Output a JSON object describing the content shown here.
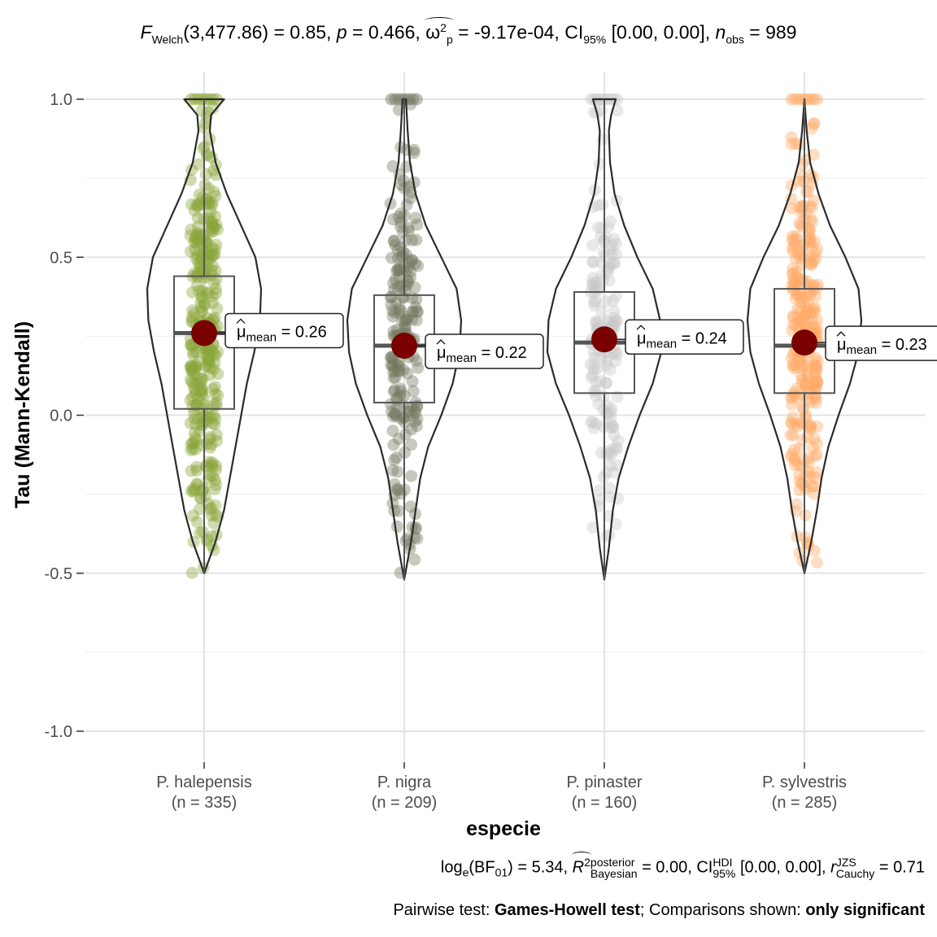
{
  "subtitle": {
    "f_label": "F",
    "f_sub": "Welch",
    "f_args": "(3,477.86) = 0.85, ",
    "p_label": "p",
    "p_text": " = 0.466, ",
    "omega": "ω",
    "omega_sup": "2",
    "omega_sub": "p",
    "omega_text": " = -9.17e-04, CI",
    "ci_sub": "95%",
    "ci_text": " [0.00, 0.00], ",
    "n_label": "n",
    "n_sub": "obs",
    "n_text": " = 989"
  },
  "caption": {
    "log_text": "log",
    "log_sub": "e",
    "bf_text": "(BF",
    "bf_sub": "01",
    "bf_value": ") = 5.34, ",
    "r2": "R",
    "r2_sup": "2",
    "r2_top": "posterior",
    "r2_bottom": "Bayesian",
    "r2_value": " = 0.00, CI",
    "ci_top": "HDI",
    "ci_bottom": "95%",
    "ci_value": " [0.00, 0.00], ",
    "r_label": "r",
    "r_top": "JZS",
    "r_bottom": "Cauchy",
    "r_value": " = 0.71",
    "pairwise_prefix": "Pairwise test: ",
    "pairwise_test": "Games-Howell test",
    "pairwise_mid": "; Comparisons shown: ",
    "pairwise_which": "only significant"
  },
  "chart_data": {
    "type": "violin-box-scatter",
    "xlabel": "especie",
    "ylabel": "Tau (Mann-Kendall)",
    "ylim": [
      -1.15,
      1.0
    ],
    "yticks": [
      -1.0,
      -0.5,
      0.0,
      0.5,
      1.0
    ],
    "ytick_labels": [
      "-1.0",
      "-0.5",
      "0.0",
      "0.5",
      "1.0"
    ],
    "grid": true,
    "mean_label_prefix": "μ",
    "mean_label_sub": "mean",
    "groups": [
      {
        "name": "P. halepensis",
        "n_label": "(n = 335)",
        "n": 335,
        "color": "#8aa63a",
        "min": -0.5,
        "q1": 0.02,
        "median": 0.26,
        "q3": 0.44,
        "max": 1.0,
        "mean": 0.26,
        "mean_label": " = 0.26",
        "violin": [
          [
            -0.5,
            0.0
          ],
          [
            -0.4,
            0.2
          ],
          [
            -0.3,
            0.35
          ],
          [
            -0.2,
            0.45
          ],
          [
            -0.1,
            0.55
          ],
          [
            0.0,
            0.65
          ],
          [
            0.1,
            0.75
          ],
          [
            0.2,
            0.88
          ],
          [
            0.3,
            0.98
          ],
          [
            0.4,
            1.0
          ],
          [
            0.5,
            0.9
          ],
          [
            0.6,
            0.65
          ],
          [
            0.7,
            0.4
          ],
          [
            0.8,
            0.2
          ],
          [
            0.9,
            0.1
          ],
          [
            0.95,
            0.12
          ],
          [
            1.0,
            0.35
          ]
        ]
      },
      {
        "name": "P. nigra",
        "n_label": "(n = 209)",
        "n": 209,
        "color": "#74785f",
        "min": -0.52,
        "q1": 0.04,
        "median": 0.22,
        "q3": 0.38,
        "max": 1.0,
        "mean": 0.22,
        "mean_label": " = 0.22",
        "violin": [
          [
            -0.52,
            0.0
          ],
          [
            -0.4,
            0.12
          ],
          [
            -0.3,
            0.2
          ],
          [
            -0.2,
            0.28
          ],
          [
            -0.1,
            0.42
          ],
          [
            0.0,
            0.65
          ],
          [
            0.1,
            0.85
          ],
          [
            0.2,
            0.97
          ],
          [
            0.3,
            1.0
          ],
          [
            0.4,
            0.92
          ],
          [
            0.5,
            0.65
          ],
          [
            0.6,
            0.38
          ],
          [
            0.7,
            0.2
          ],
          [
            0.8,
            0.1
          ],
          [
            0.9,
            0.06
          ],
          [
            1.0,
            0.03
          ]
        ]
      },
      {
        "name": "P. pinaster",
        "n_label": "(n = 160)",
        "n": 160,
        "color": "#c9c9c9",
        "min": -0.52,
        "q1": 0.07,
        "median": 0.23,
        "q3": 0.39,
        "max": 1.0,
        "mean": 0.24,
        "mean_label": " = 0.24",
        "violin": [
          [
            -0.52,
            0.0
          ],
          [
            -0.42,
            0.08
          ],
          [
            -0.3,
            0.15
          ],
          [
            -0.2,
            0.25
          ],
          [
            -0.1,
            0.42
          ],
          [
            0.0,
            0.62
          ],
          [
            0.1,
            0.85
          ],
          [
            0.2,
            1.0
          ],
          [
            0.3,
            0.98
          ],
          [
            0.4,
            0.85
          ],
          [
            0.5,
            0.58
          ],
          [
            0.6,
            0.35
          ],
          [
            0.7,
            0.18
          ],
          [
            0.8,
            0.1
          ],
          [
            0.9,
            0.08
          ],
          [
            0.95,
            0.12
          ],
          [
            1.0,
            0.2
          ]
        ]
      },
      {
        "name": "P. sylvestris",
        "n_label": "(n = 285)",
        "n": 285,
        "color": "#ffab66",
        "min": -0.5,
        "q1": 0.07,
        "median": 0.22,
        "q3": 0.4,
        "max": 1.0,
        "mean": 0.23,
        "mean_label": " = 0.23",
        "violin": [
          [
            -0.5,
            0.0
          ],
          [
            -0.4,
            0.12
          ],
          [
            -0.3,
            0.22
          ],
          [
            -0.2,
            0.3
          ],
          [
            -0.1,
            0.42
          ],
          [
            0.0,
            0.6
          ],
          [
            0.1,
            0.8
          ],
          [
            0.2,
            0.95
          ],
          [
            0.3,
            1.0
          ],
          [
            0.4,
            0.95
          ],
          [
            0.5,
            0.72
          ],
          [
            0.6,
            0.45
          ],
          [
            0.7,
            0.25
          ],
          [
            0.8,
            0.1
          ],
          [
            0.9,
            0.04
          ],
          [
            1.0,
            0.0
          ]
        ]
      }
    ]
  }
}
